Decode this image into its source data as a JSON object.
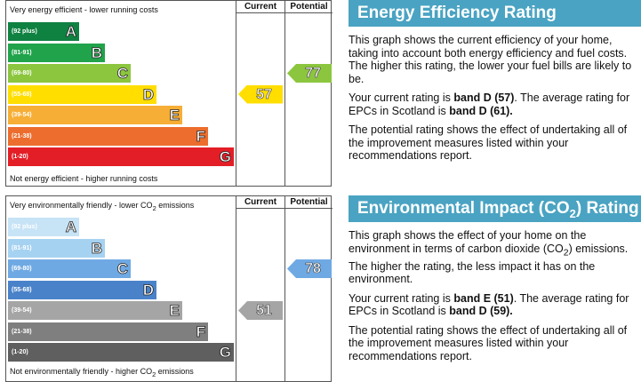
{
  "energy_efficiency": {
    "caption_top": "Very energy efficient - lower running costs",
    "caption_bottom": "Not energy efficient - higher running costs",
    "col_current": "Current",
    "col_potential": "Potential",
    "bands": [
      {
        "range": "(92 plus)",
        "letter": "A",
        "color": "#0f8141"
      },
      {
        "range": "(81-91)",
        "letter": "B",
        "color": "#21a34b"
      },
      {
        "range": "(69-80)",
        "letter": "C",
        "color": "#8cc63f"
      },
      {
        "range": "(55-68)",
        "letter": "D",
        "color": "#ffde00"
      },
      {
        "range": "(39-54)",
        "letter": "E",
        "color": "#f7ae36"
      },
      {
        "range": "(21-38)",
        "letter": "F",
        "color": "#ec6d2d"
      },
      {
        "range": "(1-20)",
        "letter": "G",
        "color": "#e31e27"
      }
    ],
    "current": {
      "value": "57",
      "color": "#ffde00"
    },
    "potential": {
      "value": "77",
      "color": "#8cc63f"
    }
  },
  "environmental_impact": {
    "caption_top_pre": "Very environmentally friendly - lower CO",
    "caption_top_sub": "2",
    "caption_top_post": " emissions",
    "caption_bottom_pre": "Not environmentally friendly - higher CO",
    "caption_bottom_sub": "2",
    "caption_bottom_post": " emissions",
    "col_current": "Current",
    "col_potential": "Potential",
    "bands": [
      {
        "range": "(92 plus)",
        "letter": "A",
        "color": "#c7e3f6"
      },
      {
        "range": "(81-91)",
        "letter": "B",
        "color": "#a6d2f2"
      },
      {
        "range": "(69-80)",
        "letter": "C",
        "color": "#6fa9e3"
      },
      {
        "range": "(55-68)",
        "letter": "D",
        "color": "#4a82c9"
      },
      {
        "range": "(39-54)",
        "letter": "E",
        "color": "#a5a5a5"
      },
      {
        "range": "(21-38)",
        "letter": "F",
        "color": "#7f7f7f"
      },
      {
        "range": "(1-20)",
        "letter": "G",
        "color": "#5f5f5f"
      }
    ],
    "current": {
      "value": "51",
      "color": "#a5a5a5"
    },
    "potential": {
      "value": "78",
      "color": "#6fa9e3"
    }
  },
  "info_ee": {
    "title": "Energy Efficiency Rating",
    "p1": "This graph shows the current efficiency of your home, taking into account both energy efficiency and fuel costs. The higher this rating, the lower your fuel bills are likely to be.",
    "p2_pre": "Your current rating is ",
    "p2_bold1": "band D (57)",
    "p2_mid": ". The average rating for EPCs in Scotland is ",
    "p2_bold2": "band D (61).",
    "p3": "The potential rating shows the effect of undertaking all of the improvement measures listed within your recommendations report."
  },
  "info_ei": {
    "title_pre": "Environmental Impact (CO",
    "title_sub": "2",
    "title_post": ") Rating",
    "p1_pre": "This graph shows the effect of your home on the environment in terms of carbon dioxide (CO",
    "p1_sub": "2",
    "p1_post": ") emissions. The higher the rating, the less impact it has on the environment.",
    "p2_pre": "Your current rating is ",
    "p2_bold1": "band E (51)",
    "p2_mid": ". The average rating for EPCs in Scotland is ",
    "p2_bold2": "band D (59).",
    "p3": "The potential rating shows the effect of undertaking all of the improvement measures listed within your recommendations report."
  }
}
